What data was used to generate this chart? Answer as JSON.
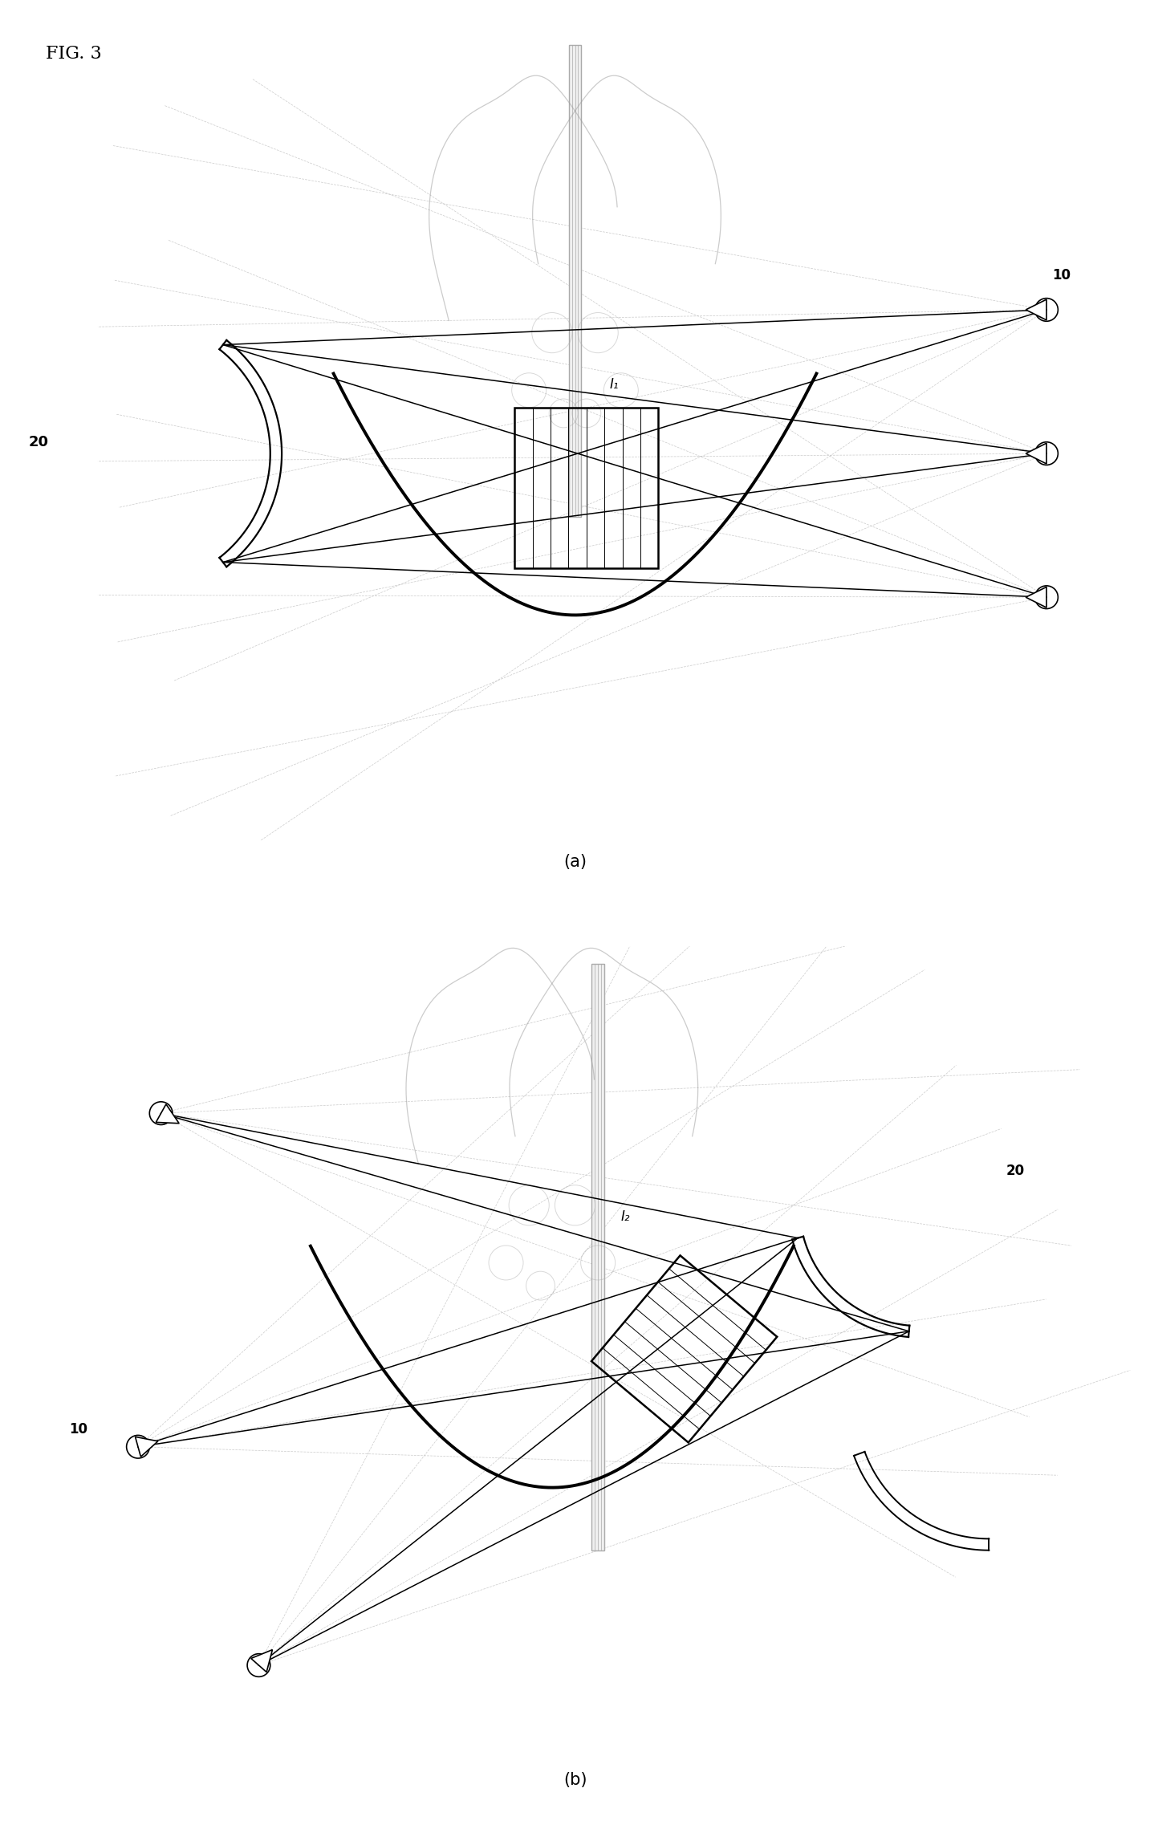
{
  "title": "FIG. 3",
  "bg_color": "#ffffff",
  "label_a": "(a)",
  "label_b": "(b)",
  "label_I1": "I₁",
  "label_I2": "I₂",
  "label_10": "10",
  "label_20": "20",
  "fig_w": 14.33,
  "fig_h": 22.89
}
